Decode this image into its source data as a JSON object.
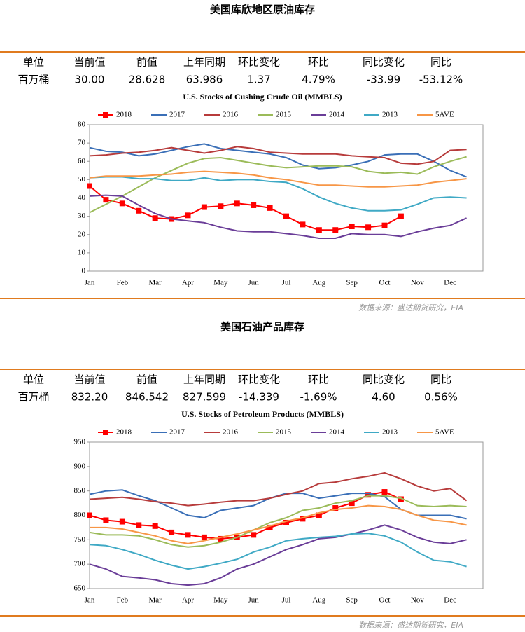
{
  "sections": [
    {
      "title": "美国库欣地区原油库存",
      "table": {
        "header": [
          "单位",
          "当前值",
          "前值",
          "上年同期",
          "环比变化",
          "环比",
          "同比变化",
          "同比"
        ],
        "row": [
          "百万桶",
          "30.00",
          "28.628",
          "63.986",
          "1.37",
          "4.79%",
          "-33.99",
          "-53.12%"
        ]
      },
      "source": "数据来源：盛达期货研究，EIA"
    },
    {
      "title": "美国石油产品库存",
      "table": {
        "header": [
          "单位",
          "当前值",
          "前值",
          "上年同期",
          "环比变化",
          "环比",
          "同比变化",
          "同比"
        ],
        "row": [
          "百万桶",
          "832.20",
          "846.542",
          "827.599",
          "-14.339",
          "-1.69%",
          "4.60",
          "0.56%"
        ]
      },
      "source": "数据来源：盛达期货研究，EIA"
    }
  ],
  "chart_data": [
    {
      "type": "line",
      "title": "U.S. Stocks of Cushing Crude Oil (MMBLS)",
      "categories": [
        "Jan",
        null,
        "Feb",
        null,
        "Mar",
        null,
        "Apr",
        null,
        "May",
        null,
        "Jun",
        null,
        "Jul",
        null,
        "Aug",
        null,
        "Sep",
        null,
        "Oct",
        null,
        "Nov",
        null,
        "Dec",
        null
      ],
      "ylim": [
        0,
        80
      ],
      "yticks": [
        0,
        10,
        20,
        30,
        40,
        50,
        60,
        70,
        80
      ],
      "grid": false,
      "legend": "top",
      "series": [
        {
          "name": "2018",
          "color": "#ff0000",
          "marker": "square",
          "values": [
            46.5,
            39,
            37,
            33,
            29,
            28.5,
            30.5,
            35,
            35.5,
            37,
            36,
            34.5,
            30,
            25.5,
            22.5,
            22.5,
            24.5,
            24,
            25,
            30,
            null,
            null,
            null,
            null
          ]
        },
        {
          "name": "2017",
          "color": "#3a6fb7",
          "values": [
            67.5,
            65.5,
            65,
            63,
            64,
            66,
            68,
            69.5,
            67,
            66,
            65,
            64,
            62,
            58,
            56,
            56.5,
            58,
            60,
            63.5,
            64,
            64,
            60,
            55,
            51.5
          ]
        },
        {
          "name": "2016",
          "color": "#b73b3b",
          "values": [
            63,
            63.5,
            64.5,
            65,
            66,
            67.5,
            66,
            64.5,
            66,
            68,
            67,
            65,
            64.5,
            64,
            64,
            64,
            63,
            62.5,
            62,
            59,
            58.5,
            60,
            66,
            66.5
          ]
        },
        {
          "name": "2015",
          "color": "#9bbb59",
          "values": [
            32,
            36.5,
            41,
            46,
            51,
            55,
            59,
            61.5,
            62,
            60.5,
            59,
            57.5,
            56.5,
            57,
            57.5,
            57.5,
            57,
            54.5,
            53.5,
            54,
            53,
            57,
            60,
            62.5
          ]
        },
        {
          "name": "2014",
          "color": "#6a3d98",
          "values": [
            41,
            41.5,
            41,
            36,
            31.5,
            28.5,
            27.5,
            26.5,
            24,
            22,
            21.5,
            21.5,
            20.5,
            19.5,
            18,
            18,
            20.5,
            20,
            20,
            19,
            21.5,
            23.5,
            25,
            29
          ]
        },
        {
          "name": "2013",
          "color": "#3fa9c5",
          "values": [
            51,
            51.5,
            51.5,
            50.5,
            50.5,
            49.5,
            49.5,
            51,
            49.5,
            50,
            50,
            49,
            48.5,
            45,
            40.5,
            37,
            34.5,
            33,
            33,
            33.5,
            36.5,
            40,
            40.5,
            40
          ]
        },
        {
          "name": "5AVE",
          "color": "#f79646",
          "values": [
            51,
            52,
            52,
            52,
            52.5,
            53,
            54,
            54.5,
            54,
            53.5,
            52.5,
            51,
            50,
            48.5,
            47,
            47,
            46.5,
            46,
            46,
            46.5,
            47,
            48.5,
            49.5,
            50.5
          ]
        }
      ]
    },
    {
      "type": "line",
      "title": "U.S.  Stocks of Petroleum Products (MMBLS)",
      "categories": [
        "Jan",
        null,
        "Feb",
        null,
        "Mar",
        null,
        "Apr",
        null,
        "May",
        null,
        "Jun",
        null,
        "Jul",
        null,
        "Aug",
        null,
        "Sep",
        null,
        "Oct",
        null,
        "Nov",
        null,
        "Dec",
        null
      ],
      "ylim": [
        650,
        950
      ],
      "yticks": [
        650,
        700,
        750,
        800,
        850,
        900,
        950
      ],
      "grid": false,
      "legend": "top",
      "series": [
        {
          "name": "2018",
          "color": "#ff0000",
          "marker": "square",
          "values": [
            800,
            790,
            787,
            780,
            778,
            765,
            760,
            755,
            752,
            755,
            760,
            775,
            785,
            793,
            800,
            815,
            825,
            842,
            848,
            833,
            null,
            null,
            null,
            null
          ]
        },
        {
          "name": "2017",
          "color": "#3a6fb7",
          "values": [
            843,
            850,
            852,
            840,
            830,
            815,
            800,
            795,
            810,
            815,
            820,
            835,
            845,
            845,
            835,
            840,
            845,
            845,
            838,
            812,
            800,
            800,
            800,
            793
          ]
        },
        {
          "name": "2016",
          "color": "#b73b3b",
          "values": [
            833,
            835,
            837,
            833,
            828,
            825,
            820,
            823,
            827,
            830,
            830,
            835,
            843,
            850,
            865,
            868,
            875,
            880,
            887,
            875,
            860,
            850,
            855,
            830
          ]
        },
        {
          "name": "2015",
          "color": "#9bbb59",
          "values": [
            765,
            760,
            760,
            758,
            750,
            740,
            735,
            738,
            745,
            755,
            770,
            785,
            795,
            810,
            815,
            825,
            830,
            840,
            840,
            835,
            820,
            818,
            820,
            818
          ]
        },
        {
          "name": "2014",
          "color": "#6a3d98",
          "values": [
            700,
            690,
            675,
            672,
            668,
            660,
            657,
            660,
            672,
            690,
            700,
            715,
            730,
            740,
            752,
            755,
            762,
            770,
            780,
            770,
            755,
            745,
            742,
            750
          ]
        },
        {
          "name": "2013",
          "color": "#3fa9c5",
          "values": [
            740,
            738,
            730,
            720,
            708,
            698,
            690,
            695,
            702,
            710,
            725,
            735,
            748,
            752,
            755,
            757,
            762,
            763,
            758,
            745,
            725,
            708,
            705,
            695
          ]
        },
        {
          "name": "5AVE",
          "color": "#f79646",
          "values": [
            775,
            775,
            772,
            765,
            758,
            748,
            742,
            748,
            755,
            762,
            770,
            778,
            788,
            795,
            805,
            812,
            815,
            820,
            818,
            812,
            800,
            790,
            787,
            780
          ]
        }
      ]
    }
  ]
}
